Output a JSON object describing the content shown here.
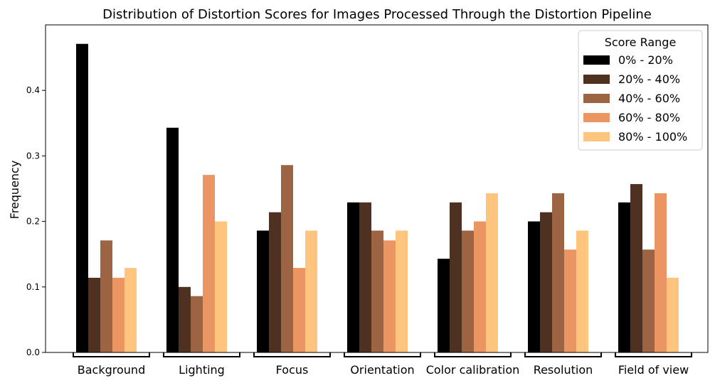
{
  "chart_data": {
    "type": "bar",
    "title": "Distribution of Distortion Scores for Images Processed Through the Distortion Pipeline",
    "xlabel": "",
    "ylabel": "Frequency",
    "ylim": [
      0,
      0.5
    ],
    "yticks": [
      "0.0",
      "0.1",
      "0.2",
      "0.3",
      "0.4"
    ],
    "ytick_values": [
      0,
      0.1,
      0.2,
      0.3,
      0.4
    ],
    "grid": false,
    "categories": [
      "Background",
      "Lighting",
      "Focus",
      "Orientation",
      "Color calibration",
      "Resolution",
      "Field of view"
    ],
    "legend": {
      "title": "Score Range",
      "placement": "top-right"
    },
    "series": [
      {
        "name": "0% - 20%",
        "color": "#000000",
        "values": [
          0.471,
          0.343,
          0.186,
          0.229,
          0.143,
          0.2,
          0.229
        ]
      },
      {
        "name": "20% - 40%",
        "color": "#4e3121",
        "values": [
          0.114,
          0.1,
          0.214,
          0.229,
          0.229,
          0.214,
          0.257
        ]
      },
      {
        "name": "40% - 60%",
        "color": "#9c6442",
        "values": [
          0.171,
          0.086,
          0.286,
          0.186,
          0.186,
          0.243,
          0.157
        ]
      },
      {
        "name": "60% - 80%",
        "color": "#ea9562",
        "values": [
          0.114,
          0.271,
          0.129,
          0.171,
          0.2,
          0.157,
          0.243
        ]
      },
      {
        "name": "80% - 100%",
        "color": "#ffc57e",
        "values": [
          0.129,
          0.2,
          0.186,
          0.186,
          0.243,
          0.186,
          0.114
        ]
      }
    ]
  }
}
